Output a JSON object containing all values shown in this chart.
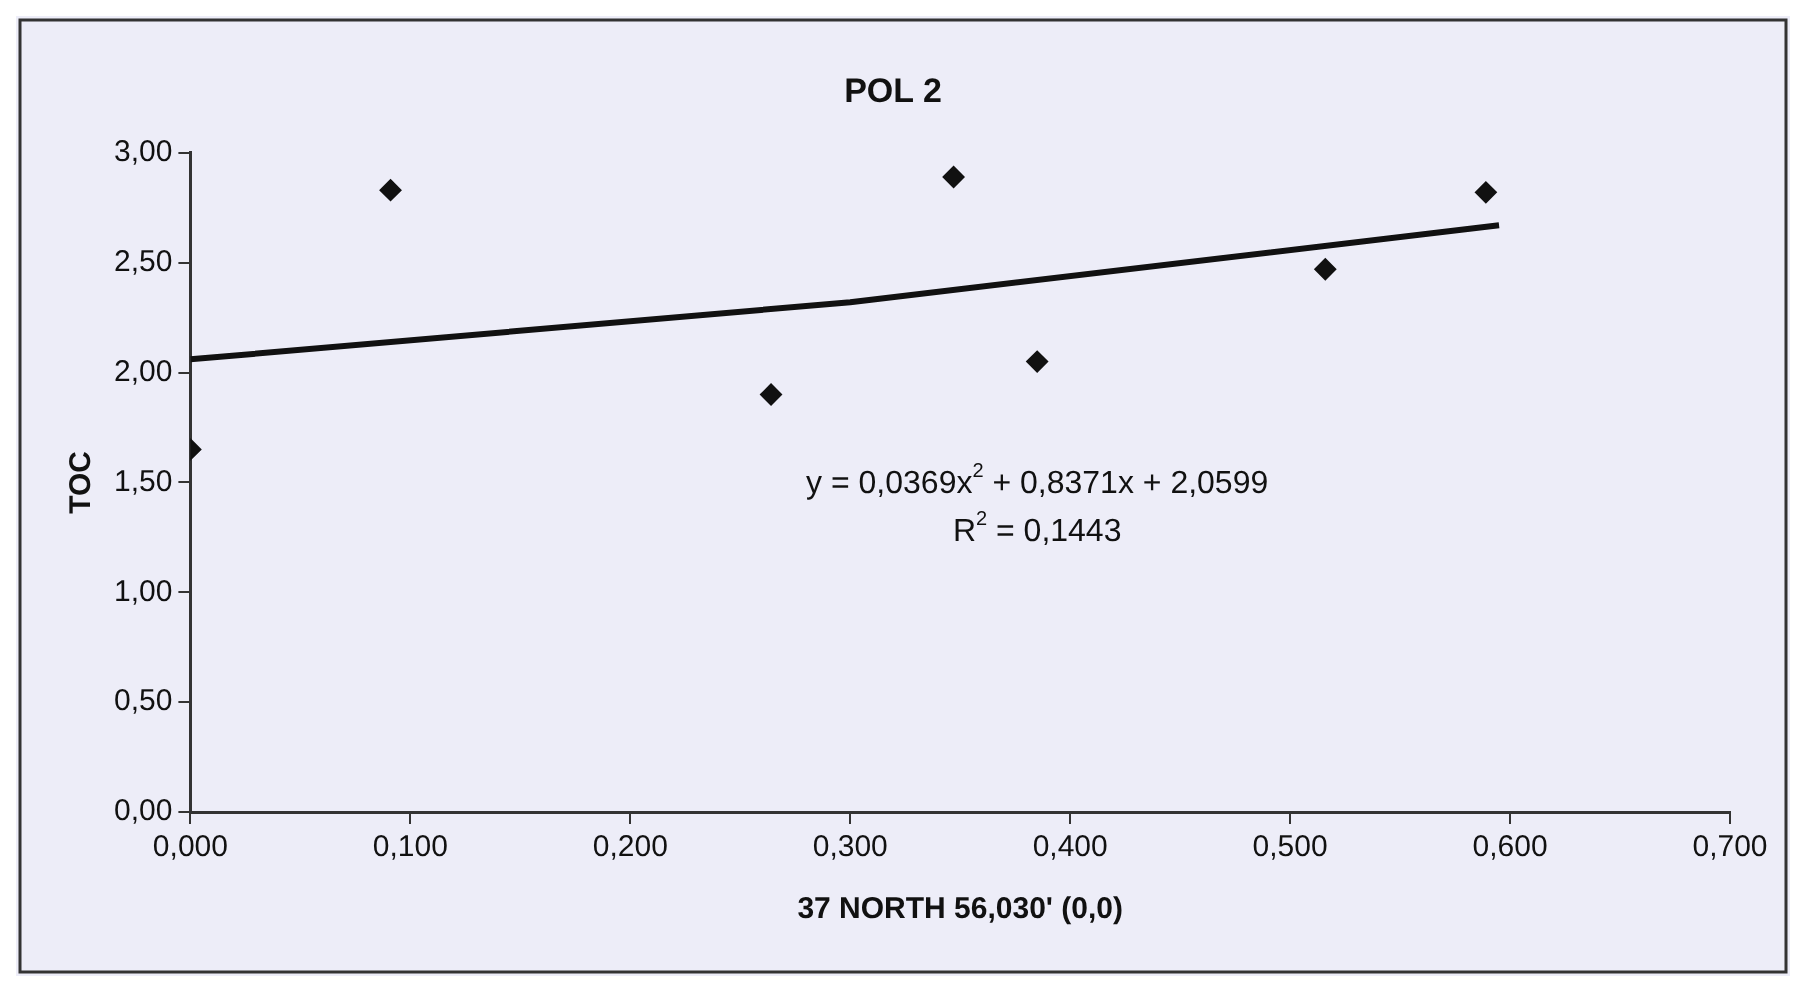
{
  "chart_data": {
    "type": "scatter",
    "title": "POL 2",
    "xlabel": "37 NORTH 56,030' (0,0)",
    "ylabel": "TOC",
    "annotations": [
      "y = 0,0369x$^{2}$ + 0,8371x + 2,0599",
      "R$^{2}$ = 0,1443"
    ],
    "series": [
      {
        "type": "scatter",
        "color": "#111111",
        "marker": "diamond",
        "x": [
          0.0,
          0.091,
          0.264,
          0.347,
          0.385,
          0.516,
          0.589
        ],
        "values": [
          1.65,
          2.83,
          1.9,
          2.89,
          2.05,
          2.47,
          2.82
        ]
      },
      {
        "type": "line",
        "color": "#111111",
        "marker": "none",
        "line_style": "solid",
        "x": [
          0.0,
          0.3,
          0.595
        ],
        "values": [
          2.06,
          2.32,
          2.67
        ]
      }
    ],
    "xlim": [
      0,
      0.7
    ],
    "xticks": [
      {
        "value": 0,
        "label": "0,000"
      },
      {
        "value": 0.1,
        "label": "0,100"
      },
      {
        "value": 0.2,
        "label": "0,200"
      },
      {
        "value": 0.3,
        "label": "0,300"
      },
      {
        "value": 0.4,
        "label": "0,400"
      },
      {
        "value": 0.5,
        "label": "0,500"
      },
      {
        "value": 0.6,
        "label": "0,600"
      },
      {
        "value": 0.7,
        "label": "0,700"
      }
    ],
    "ylim": [
      0,
      3
    ],
    "yticks": [
      {
        "value": 0,
        "label": "0,00"
      },
      {
        "value": 0.5,
        "label": "0,50"
      },
      {
        "value": 1,
        "label": "1,00"
      },
      {
        "value": 1.5,
        "label": "1,50"
      },
      {
        "value": 2,
        "label": "2,00"
      },
      {
        "value": 2.5,
        "label": "2,50"
      },
      {
        "value": 3,
        "label": "3,00"
      }
    ],
    "grid": false,
    "legend": false
  }
}
